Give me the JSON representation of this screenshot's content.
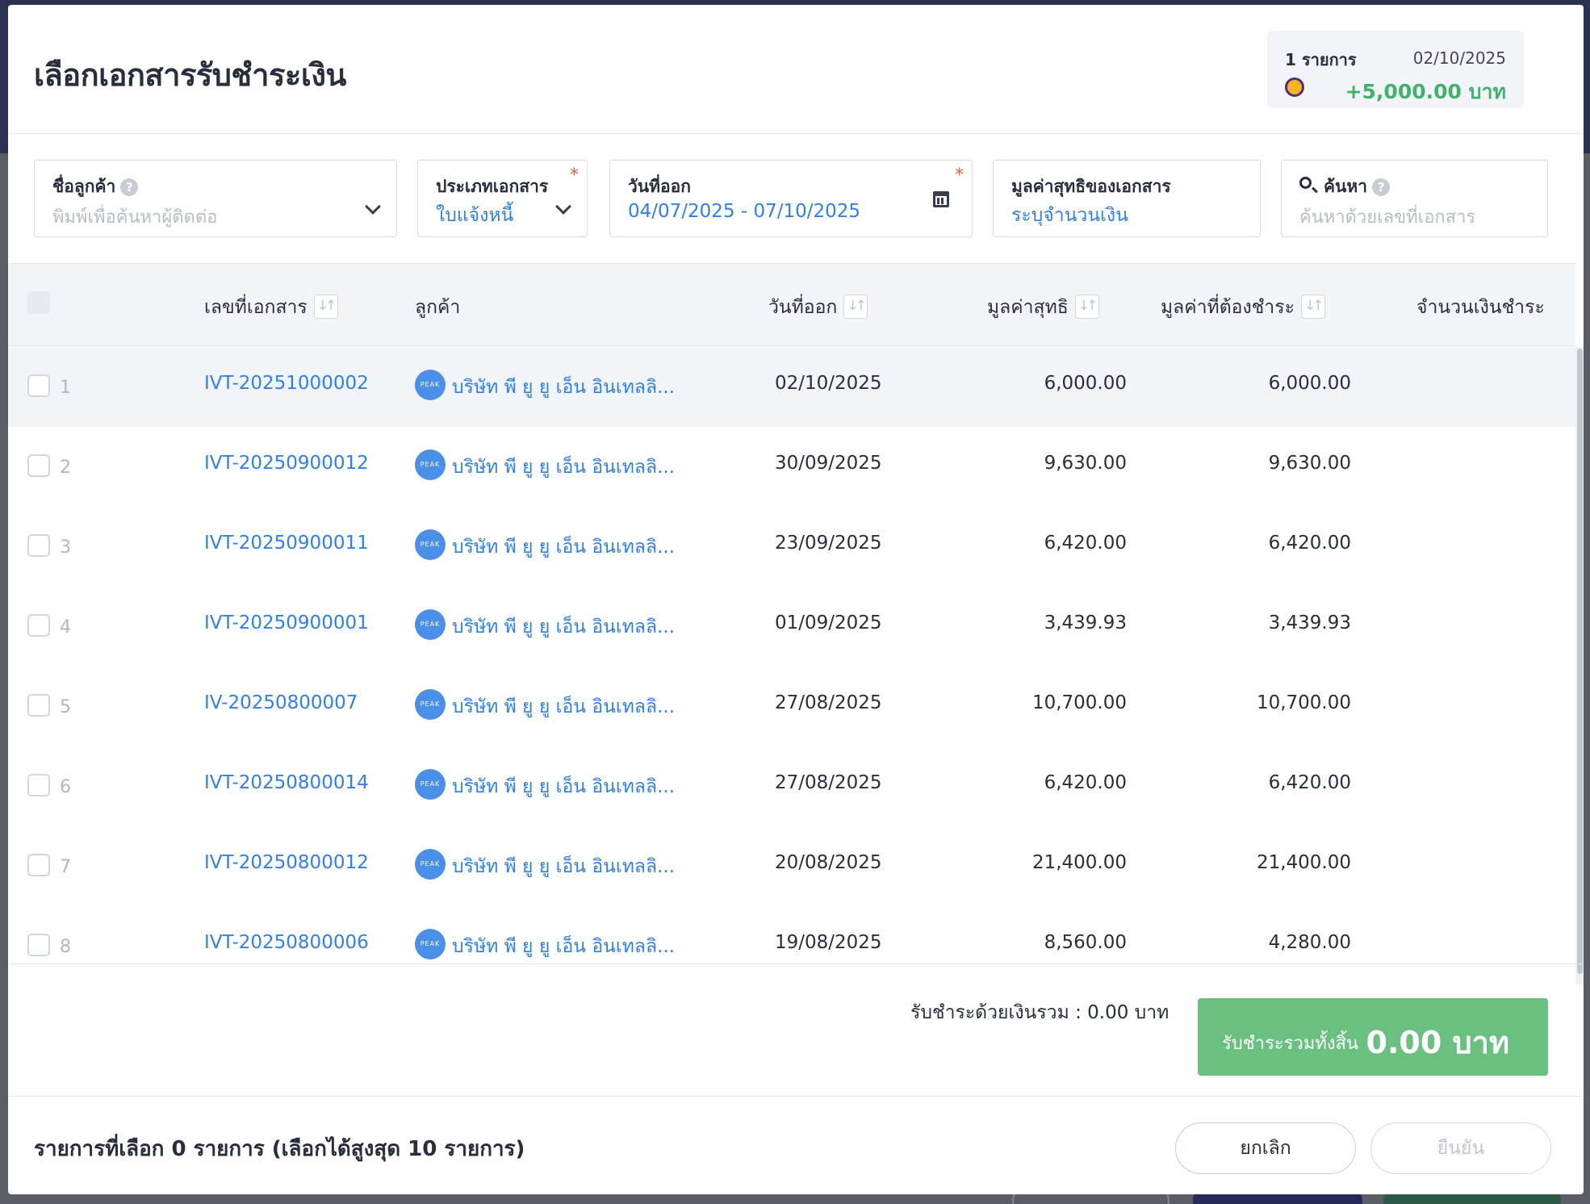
{
  "modal": {
    "title": "เลือกเอกสารรับชำระเงิน"
  },
  "summary": {
    "count": "1 รายการ",
    "date": "02/10/2025",
    "amount": "+5,000.00 บาท"
  },
  "filters": {
    "customer": {
      "label": "ชื่อลูกค้า",
      "placeholder": "พิมพ์เพื่อค้นหาผู้ติดต่อ"
    },
    "doc_type": {
      "label": "ประเภทเอกสาร",
      "value": "ใบแจ้งหนี้",
      "required": "*"
    },
    "issue_date": {
      "label": "วันที่ออก",
      "value": "04/07/2025 - 07/10/2025",
      "required": "*"
    },
    "net_value": {
      "label": "มูลค่าสุทธิของเอกสาร",
      "value": "ระบุจำนวนเงิน"
    },
    "search": {
      "label": "ค้นหา",
      "placeholder": "ค้นหาด้วยเลขที่เอกสาร"
    }
  },
  "table": {
    "headers": {
      "doc_no": "เลขที่เอกสาร",
      "customer": "ลูกค้า",
      "issue_date": "วันที่ออก",
      "net_value": "มูลค่าสุทธิ",
      "due_value": "มูลค่าที่ต้องชำระ",
      "pay_amount": "จำนวนเงินชำระ"
    },
    "rows": [
      {
        "num": "1",
        "doc_no": "IVT-20251000002",
        "customer": "บริษัท พี ยู ยู เอ็น อินเทลลิ...",
        "date": "02/10/2025",
        "net": "6,000.00",
        "due": "6,000.00"
      },
      {
        "num": "2",
        "doc_no": "IVT-20250900012",
        "customer": "บริษัท พี ยู ยู เอ็น อินเทลลิ...",
        "date": "30/09/2025",
        "net": "9,630.00",
        "due": "9,630.00"
      },
      {
        "num": "3",
        "doc_no": "IVT-20250900011",
        "customer": "บริษัท พี ยู ยู เอ็น อินเทลลิ...",
        "date": "23/09/2025",
        "net": "6,420.00",
        "due": "6,420.00"
      },
      {
        "num": "4",
        "doc_no": "IVT-20250900001",
        "customer": "บริษัท พี ยู ยู เอ็น อินเทลลิ...",
        "date": "01/09/2025",
        "net": "3,439.93",
        "due": "3,439.93"
      },
      {
        "num": "5",
        "doc_no": "IV-20250800007",
        "customer": "บริษัท พี ยู ยู เอ็น อินเทลลิ...",
        "date": "27/08/2025",
        "net": "10,700.00",
        "due": "10,700.00"
      },
      {
        "num": "6",
        "doc_no": "IVT-20250800014",
        "customer": "บริษัท พี ยู ยู เอ็น อินเทลลิ...",
        "date": "27/08/2025",
        "net": "6,420.00",
        "due": "6,420.00"
      },
      {
        "num": "7",
        "doc_no": "IVT-20250800012",
        "customer": "บริษัท พี ยู ยู เอ็น อินเทลลิ...",
        "date": "20/08/2025",
        "net": "21,400.00",
        "due": "21,400.00"
      },
      {
        "num": "8",
        "doc_no": "IVT-20250800006",
        "customer": "บริษัท พี ยู ยู เอ็น อินเทลลิ...",
        "date": "19/08/2025",
        "net": "8,560.00",
        "due": "4,280.00"
      }
    ],
    "avatar_text": "PEAK"
  },
  "totals": {
    "cash_label": "รับชำระด้วยเงินรวม :  0.00 บาท",
    "grand_label": "รับชำระรวมทั้งสิ้น",
    "grand_amount": "0.00 บาท",
    "grand_color": "#6ac17f"
  },
  "footer": {
    "selected_text": "รายการที่เลือก 0 รายการ (เลือกได้สูงสุด 10 รายการ)",
    "cancel_label": "ยกเลิก",
    "confirm_label": "ยืนยัน"
  },
  "colors": {
    "link": "#2f80ed",
    "positive": "#3fb26c",
    "required": "#ea5a3e"
  }
}
